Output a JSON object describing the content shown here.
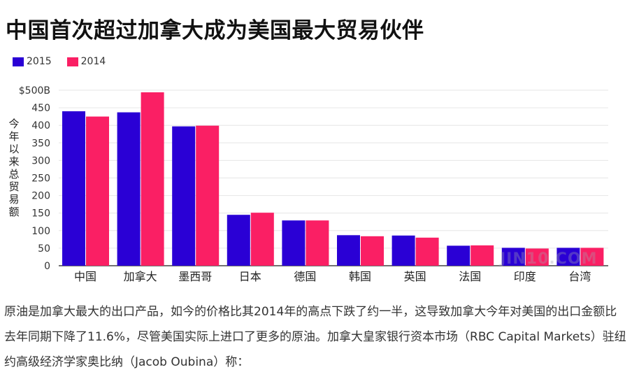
{
  "title": "中国首次超过加拿大成为美国最大贸易伙伴",
  "ylabel": "今年以来总贸易额",
  "watermark": "JIN10.COM",
  "caption": "原油是加拿大最大的出口产品，如今的价格比其2014年的高点下跌了约一半，这导致加拿大今年对美国的出口金额比去年同期下降了11.6%，尽管美国实际上进口了更多的原油。加拿大皇家银行资本市场（RBC Capital Markets）驻纽约高级经济学家奥比纳（Jacob Oubina）称：",
  "colors": {
    "s2015": "#2a00d5",
    "s2014": "#fa1f64",
    "grid": "#e6e6e6",
    "axis": "#444444"
  },
  "chart_data": {
    "type": "bar",
    "categories": [
      "中国",
      "加拿大",
      "墨西哥",
      "日本",
      "德国",
      "韩国",
      "英国",
      "法国",
      "印度",
      "台湾"
    ],
    "series": [
      {
        "name": "2015",
        "values": [
          440,
          437,
          397,
          145,
          129,
          87,
          86,
          57,
          51,
          51
        ]
      },
      {
        "name": "2014",
        "values": [
          425,
          494,
          399,
          151,
          129,
          84,
          80,
          58,
          49,
          51
        ]
      }
    ],
    "ylim": [
      0,
      500
    ],
    "yticks": [
      "0",
      "50",
      "100",
      "150",
      "200",
      "250",
      "300",
      "350",
      "400",
      "450",
      "$500B"
    ],
    "legend": "top-left",
    "grid": true
  }
}
